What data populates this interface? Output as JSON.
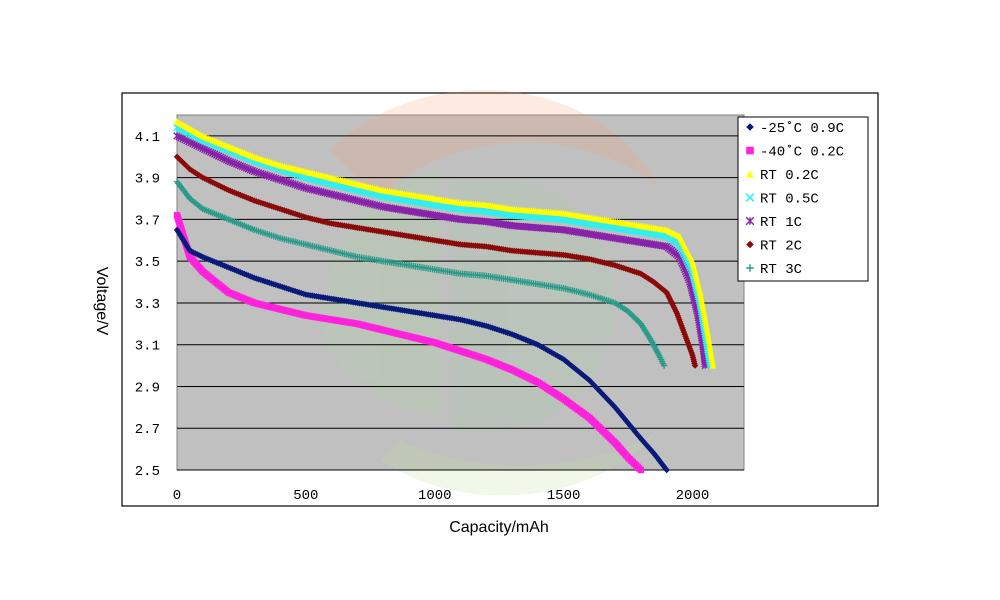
{
  "chart_data": {
    "type": "scatter",
    "title": "",
    "xlabel": "Capacity/mAh",
    "ylabel": "Voltage/V",
    "xlim": [
      0,
      2200
    ],
    "ylim": [
      2.5,
      4.2
    ],
    "x_ticks": [
      0,
      500,
      1000,
      1500,
      2000
    ],
    "x_tick_labels": [
      "0",
      "500",
      "1000",
      "1500",
      "2000"
    ],
    "y_ticks": [
      2.5,
      2.7,
      2.9,
      3.1,
      3.3,
      3.5,
      3.7,
      3.9,
      4.1
    ],
    "y_tick_labels": [
      "2.5",
      "2.7",
      "2.9",
      "3.1",
      "3.3",
      "3.5",
      "3.7",
      "3.9",
      "4.1"
    ],
    "grid": "horizontal",
    "legend_position": "top-right",
    "series": [
      {
        "name": "-25˚C 0.9C",
        "color": "#0a1a7a",
        "marker": "diamond",
        "points": [
          [
            0,
            3.65
          ],
          [
            50,
            3.55
          ],
          [
            100,
            3.52
          ],
          [
            200,
            3.47
          ],
          [
            300,
            3.42
          ],
          [
            400,
            3.38
          ],
          [
            500,
            3.34
          ],
          [
            600,
            3.32
          ],
          [
            700,
            3.3
          ],
          [
            800,
            3.28
          ],
          [
            900,
            3.26
          ],
          [
            1000,
            3.24
          ],
          [
            1100,
            3.22
          ],
          [
            1200,
            3.19
          ],
          [
            1300,
            3.15
          ],
          [
            1400,
            3.1
          ],
          [
            1500,
            3.03
          ],
          [
            1600,
            2.93
          ],
          [
            1700,
            2.8
          ],
          [
            1800,
            2.65
          ],
          [
            1850,
            2.58
          ],
          [
            1900,
            2.5
          ]
        ]
      },
      {
        "name": "-40˚C 0.2C",
        "color": "#ff22dd",
        "marker": "square",
        "points": [
          [
            0,
            3.72
          ],
          [
            50,
            3.52
          ],
          [
            100,
            3.45
          ],
          [
            200,
            3.35
          ],
          [
            300,
            3.3
          ],
          [
            400,
            3.27
          ],
          [
            500,
            3.24
          ],
          [
            600,
            3.22
          ],
          [
            700,
            3.2
          ],
          [
            800,
            3.17
          ],
          [
            900,
            3.14
          ],
          [
            1000,
            3.11
          ],
          [
            1100,
            3.07
          ],
          [
            1200,
            3.03
          ],
          [
            1300,
            2.98
          ],
          [
            1400,
            2.92
          ],
          [
            1500,
            2.84
          ],
          [
            1600,
            2.75
          ],
          [
            1700,
            2.63
          ],
          [
            1750,
            2.56
          ],
          [
            1800,
            2.5
          ]
        ]
      },
      {
        "name": "RT 0.2C",
        "color": "#ffff00",
        "marker": "triangle",
        "points": [
          [
            0,
            4.17
          ],
          [
            100,
            4.1
          ],
          [
            200,
            4.05
          ],
          [
            300,
            4.0
          ],
          [
            400,
            3.96
          ],
          [
            500,
            3.93
          ],
          [
            600,
            3.9
          ],
          [
            700,
            3.87
          ],
          [
            800,
            3.84
          ],
          [
            900,
            3.82
          ],
          [
            1000,
            3.8
          ],
          [
            1100,
            3.78
          ],
          [
            1200,
            3.77
          ],
          [
            1300,
            3.75
          ],
          [
            1400,
            3.74
          ],
          [
            1500,
            3.73
          ],
          [
            1600,
            3.71
          ],
          [
            1700,
            3.69
          ],
          [
            1800,
            3.67
          ],
          [
            1900,
            3.65
          ],
          [
            1950,
            3.62
          ],
          [
            2000,
            3.5
          ],
          [
            2030,
            3.35
          ],
          [
            2060,
            3.15
          ],
          [
            2080,
            3.0
          ]
        ]
      },
      {
        "name": "RT 0.5C",
        "color": "#33eeee",
        "marker": "x",
        "points": [
          [
            0,
            4.14
          ],
          [
            100,
            4.08
          ],
          [
            200,
            4.03
          ],
          [
            300,
            3.98
          ],
          [
            400,
            3.94
          ],
          [
            500,
            3.9
          ],
          [
            600,
            3.87
          ],
          [
            700,
            3.84
          ],
          [
            800,
            3.81
          ],
          [
            900,
            3.79
          ],
          [
            1000,
            3.77
          ],
          [
            1100,
            3.75
          ],
          [
            1200,
            3.74
          ],
          [
            1300,
            3.72
          ],
          [
            1400,
            3.71
          ],
          [
            1500,
            3.7
          ],
          [
            1600,
            3.68
          ],
          [
            1700,
            3.66
          ],
          [
            1800,
            3.64
          ],
          [
            1900,
            3.62
          ],
          [
            1950,
            3.58
          ],
          [
            2000,
            3.45
          ],
          [
            2030,
            3.3
          ],
          [
            2050,
            3.15
          ],
          [
            2070,
            3.0
          ]
        ]
      },
      {
        "name": "RT 1C",
        "color": "#8822aa",
        "marker": "asterisk",
        "points": [
          [
            0,
            4.1
          ],
          [
            100,
            4.04
          ],
          [
            200,
            3.98
          ],
          [
            300,
            3.93
          ],
          [
            400,
            3.89
          ],
          [
            500,
            3.85
          ],
          [
            600,
            3.82
          ],
          [
            700,
            3.79
          ],
          [
            800,
            3.76
          ],
          [
            900,
            3.74
          ],
          [
            1000,
            3.72
          ],
          [
            1100,
            3.7
          ],
          [
            1200,
            3.69
          ],
          [
            1300,
            3.67
          ],
          [
            1400,
            3.66
          ],
          [
            1500,
            3.65
          ],
          [
            1600,
            3.63
          ],
          [
            1700,
            3.61
          ],
          [
            1800,
            3.59
          ],
          [
            1900,
            3.57
          ],
          [
            1950,
            3.52
          ],
          [
            1990,
            3.4
          ],
          [
            2020,
            3.25
          ],
          [
            2040,
            3.1
          ],
          [
            2050,
            3.0
          ]
        ]
      },
      {
        "name": "RT 2C",
        "color": "#8a0a0a",
        "marker": "diamond",
        "points": [
          [
            0,
            4.0
          ],
          [
            50,
            3.94
          ],
          [
            100,
            3.9
          ],
          [
            200,
            3.84
          ],
          [
            300,
            3.79
          ],
          [
            400,
            3.75
          ],
          [
            500,
            3.71
          ],
          [
            600,
            3.68
          ],
          [
            700,
            3.66
          ],
          [
            800,
            3.64
          ],
          [
            900,
            3.62
          ],
          [
            1000,
            3.6
          ],
          [
            1100,
            3.58
          ],
          [
            1200,
            3.57
          ],
          [
            1300,
            3.55
          ],
          [
            1400,
            3.54
          ],
          [
            1500,
            3.53
          ],
          [
            1600,
            3.51
          ],
          [
            1700,
            3.48
          ],
          [
            1800,
            3.44
          ],
          [
            1850,
            3.4
          ],
          [
            1900,
            3.35
          ],
          [
            1940,
            3.25
          ],
          [
            1970,
            3.15
          ],
          [
            2000,
            3.05
          ],
          [
            2010,
            3.0
          ]
        ]
      },
      {
        "name": "RT 3C",
        "color": "#2a9a8a",
        "marker": "plus",
        "points": [
          [
            0,
            3.88
          ],
          [
            50,
            3.8
          ],
          [
            100,
            3.75
          ],
          [
            200,
            3.7
          ],
          [
            300,
            3.65
          ],
          [
            400,
            3.61
          ],
          [
            500,
            3.58
          ],
          [
            600,
            3.55
          ],
          [
            700,
            3.52
          ],
          [
            800,
            3.5
          ],
          [
            900,
            3.48
          ],
          [
            1000,
            3.46
          ],
          [
            1100,
            3.44
          ],
          [
            1200,
            3.43
          ],
          [
            1300,
            3.41
          ],
          [
            1400,
            3.39
          ],
          [
            1500,
            3.37
          ],
          [
            1600,
            3.34
          ],
          [
            1700,
            3.3
          ],
          [
            1750,
            3.26
          ],
          [
            1800,
            3.2
          ],
          [
            1840,
            3.12
          ],
          [
            1870,
            3.05
          ],
          [
            1890,
            3.0
          ]
        ]
      }
    ]
  }
}
